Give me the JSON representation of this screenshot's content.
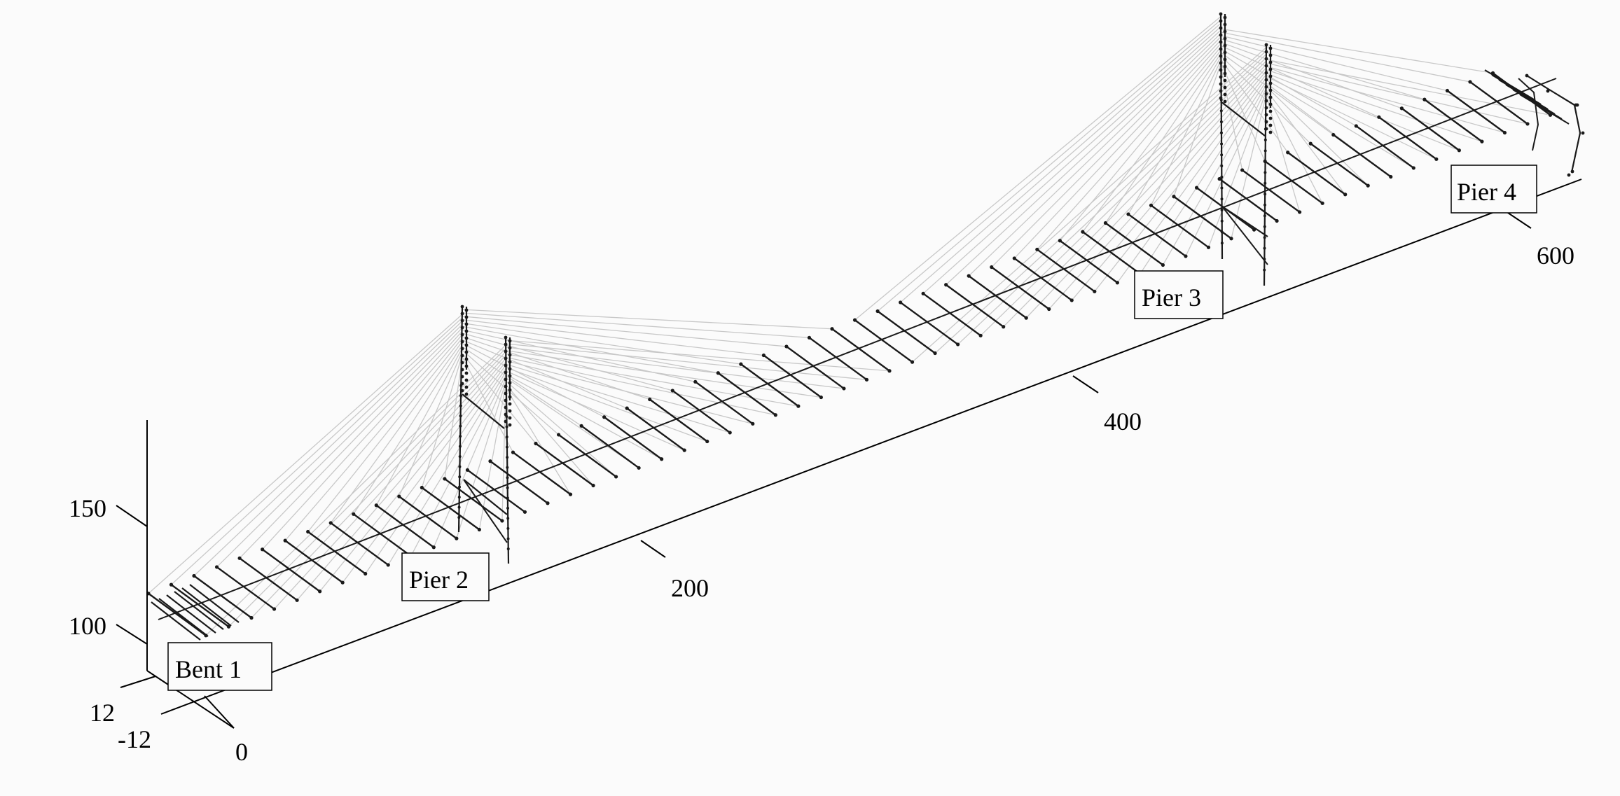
{
  "figure": {
    "axis_labels": {
      "x_ticks": [
        "0",
        "200",
        "400",
        "600"
      ],
      "y_ticks": [
        "12",
        "-12"
      ],
      "z_ticks": [
        "100",
        "150"
      ]
    },
    "support_labels": [
      "Bent 1",
      "Pier 2",
      "Pier 3",
      "Pier 4"
    ]
  },
  "colors": {
    "background": "#fbfbfb",
    "axis": "#000000",
    "structure": "#1a1a1a",
    "cables": "#c8c8c8"
  }
}
